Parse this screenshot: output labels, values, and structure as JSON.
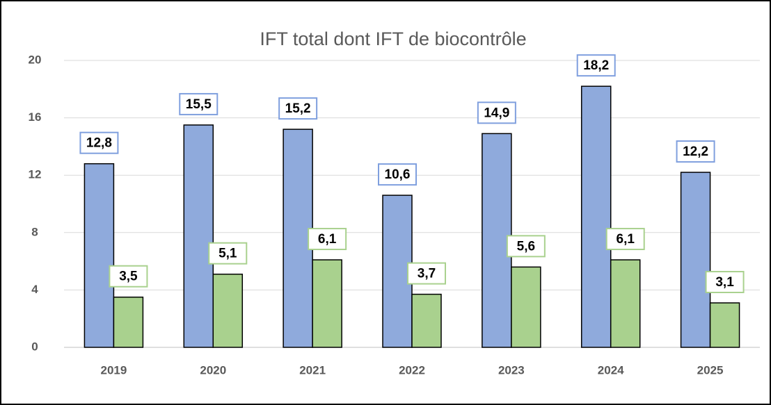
{
  "chart_data": {
    "type": "bar",
    "title": "IFT total dont IFT de biocontrôle",
    "categories": [
      "2019",
      "2020",
      "2021",
      "2022",
      "2023",
      "2024",
      "2025"
    ],
    "series": [
      {
        "color": "#8faadc",
        "label_border": "#7f9fde",
        "values": [
          12.8,
          15.5,
          15.2,
          10.6,
          14.9,
          18.2,
          12.2
        ],
        "value_labels": [
          "12,8",
          "15,5",
          "15,2",
          "10,6",
          "14,9",
          "18,2",
          "12,2"
        ]
      },
      {
        "color": "#a9d18e",
        "label_border": "#a9d18e",
        "values": [
          3.5,
          5.1,
          6.1,
          3.7,
          5.6,
          6.1,
          3.1
        ],
        "value_labels": [
          "3,5",
          "5,1",
          "6,1",
          "3,7",
          "5,6",
          "6,1",
          "3,1"
        ]
      }
    ],
    "ylim": [
      0,
      20
    ],
    "yticks": [
      0,
      4,
      8,
      12,
      16,
      20
    ],
    "grid": true
  }
}
